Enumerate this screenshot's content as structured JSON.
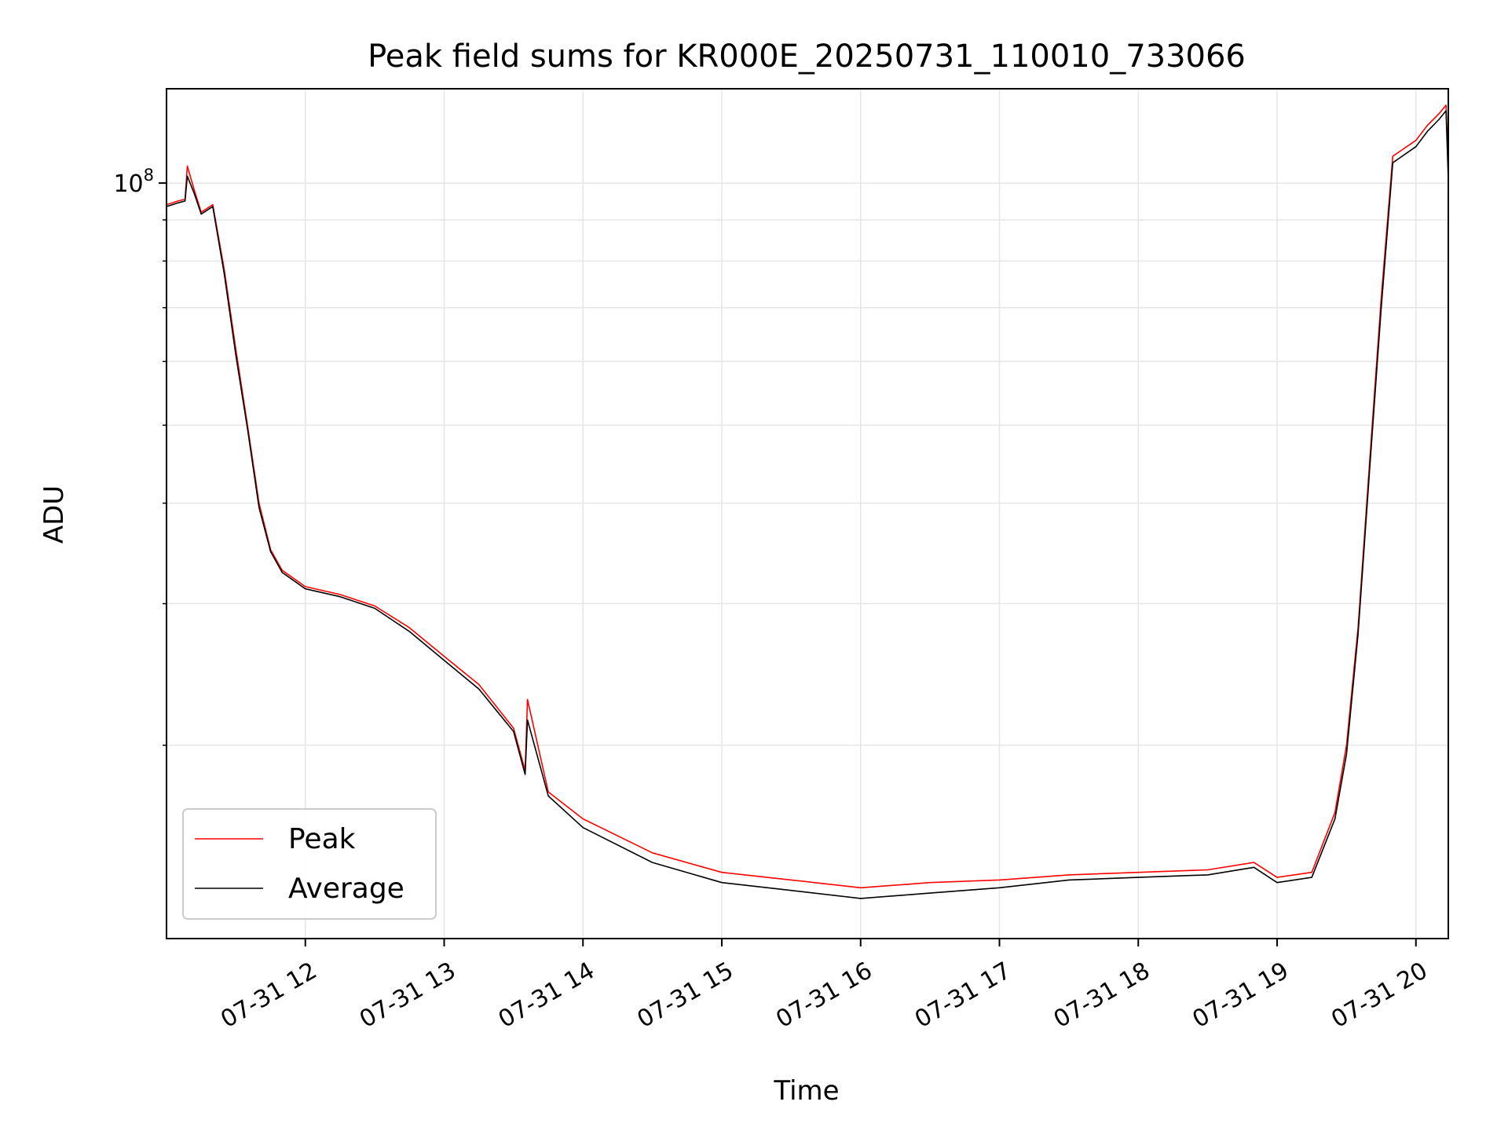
{
  "chart_data": {
    "type": "line",
    "title": "Peak field sums for KR000E_20250731_110010_733066",
    "xlabel": "Time",
    "ylabel": "ADU",
    "x_axis": "datetime",
    "x_range": [
      "2025-07-31 11:00",
      "2025-07-31 20:14"
    ],
    "y_scale": "log",
    "y_range": [
      11500000,
      131000000
    ],
    "xticks": [
      {
        "t": "2025-07-31 12:00",
        "label": "07-31 12"
      },
      {
        "t": "2025-07-31 13:00",
        "label": "07-31 13"
      },
      {
        "t": "2025-07-31 14:00",
        "label": "07-31 14"
      },
      {
        "t": "2025-07-31 15:00",
        "label": "07-31 15"
      },
      {
        "t": "2025-07-31 16:00",
        "label": "07-31 16"
      },
      {
        "t": "2025-07-31 17:00",
        "label": "07-31 17"
      },
      {
        "t": "2025-07-31 18:00",
        "label": "07-31 18"
      },
      {
        "t": "2025-07-31 19:00",
        "label": "07-31 19"
      },
      {
        "t": "2025-07-31 20:00",
        "label": "07-31 20"
      }
    ],
    "yticks_major": [
      {
        "v": 100000000,
        "base": "10",
        "exp": "8"
      }
    ],
    "yticks_minor": [
      20000000,
      30000000,
      40000000,
      50000000,
      60000000,
      70000000,
      80000000,
      90000000
    ],
    "grid": true,
    "legend_position": "lower-left",
    "series": [
      {
        "name": "Peak",
        "color": "#ff0000",
        "points": [
          [
            "2025-07-31 11:00",
            94000000
          ],
          [
            "2025-07-31 11:05",
            95000000
          ],
          [
            "2025-07-31 11:08",
            95500000
          ],
          [
            "2025-07-31 11:09",
            105000000
          ],
          [
            "2025-07-31 11:12",
            98000000
          ],
          [
            "2025-07-31 11:15",
            92000000
          ],
          [
            "2025-07-31 11:20",
            94000000
          ],
          [
            "2025-07-31 11:25",
            78000000
          ],
          [
            "2025-07-31 11:30",
            62000000
          ],
          [
            "2025-07-31 11:35",
            50000000
          ],
          [
            "2025-07-31 11:40",
            40000000
          ],
          [
            "2025-07-31 11:45",
            35000000
          ],
          [
            "2025-07-31 11:50",
            33000000
          ],
          [
            "2025-07-31 12:00",
            31500000
          ],
          [
            "2025-07-31 12:15",
            30800000
          ],
          [
            "2025-07-31 12:30",
            29800000
          ],
          [
            "2025-07-31 12:45",
            28000000
          ],
          [
            "2025-07-31 13:00",
            25800000
          ],
          [
            "2025-07-31 13:15",
            23800000
          ],
          [
            "2025-07-31 13:30",
            21000000
          ],
          [
            "2025-07-31 13:35",
            18600000
          ],
          [
            "2025-07-31 13:36",
            22800000
          ],
          [
            "2025-07-31 13:45",
            17500000
          ],
          [
            "2025-07-31 14:00",
            16200000
          ],
          [
            "2025-07-31 14:30",
            14700000
          ],
          [
            "2025-07-31 15:00",
            13900000
          ],
          [
            "2025-07-31 15:30",
            13600000
          ],
          [
            "2025-07-31 16:00",
            13300000
          ],
          [
            "2025-07-31 16:30",
            13500000
          ],
          [
            "2025-07-31 17:00",
            13600000
          ],
          [
            "2025-07-31 17:30",
            13800000
          ],
          [
            "2025-07-31 18:00",
            13900000
          ],
          [
            "2025-07-31 18:30",
            14000000
          ],
          [
            "2025-07-31 18:50",
            14300000
          ],
          [
            "2025-07-31 19:00",
            13700000
          ],
          [
            "2025-07-31 19:15",
            13900000
          ],
          [
            "2025-07-31 19:25",
            16500000
          ],
          [
            "2025-07-31 19:30",
            20000000
          ],
          [
            "2025-07-31 19:35",
            28000000
          ],
          [
            "2025-07-31 19:40",
            45000000
          ],
          [
            "2025-07-31 19:45",
            72000000
          ],
          [
            "2025-07-31 19:50",
            108000000
          ],
          [
            "2025-07-31 20:00",
            113000000
          ],
          [
            "2025-07-31 20:05",
            118000000
          ],
          [
            "2025-07-31 20:10",
            122000000
          ],
          [
            "2025-07-31 20:13",
            125000000
          ],
          [
            "2025-07-31 20:14",
            104000000
          ]
        ]
      },
      {
        "name": "Average",
        "color": "#000000",
        "points": [
          [
            "2025-07-31 11:00",
            93500000
          ],
          [
            "2025-07-31 11:05",
            94500000
          ],
          [
            "2025-07-31 11:08",
            95000000
          ],
          [
            "2025-07-31 11:09",
            102000000
          ],
          [
            "2025-07-31 11:12",
            97000000
          ],
          [
            "2025-07-31 11:15",
            91500000
          ],
          [
            "2025-07-31 11:20",
            93500000
          ],
          [
            "2025-07-31 11:25",
            77000000
          ],
          [
            "2025-07-31 11:30",
            61000000
          ],
          [
            "2025-07-31 11:35",
            49500000
          ],
          [
            "2025-07-31 11:40",
            39500000
          ],
          [
            "2025-07-31 11:45",
            34800000
          ],
          [
            "2025-07-31 11:50",
            32800000
          ],
          [
            "2025-07-31 12:00",
            31300000
          ],
          [
            "2025-07-31 12:15",
            30600000
          ],
          [
            "2025-07-31 12:30",
            29600000
          ],
          [
            "2025-07-31 12:45",
            27700000
          ],
          [
            "2025-07-31 13:00",
            25500000
          ],
          [
            "2025-07-31 13:15",
            23500000
          ],
          [
            "2025-07-31 13:30",
            20800000
          ],
          [
            "2025-07-31 13:35",
            18400000
          ],
          [
            "2025-07-31 13:36",
            21500000
          ],
          [
            "2025-07-31 13:45",
            17300000
          ],
          [
            "2025-07-31 14:00",
            15800000
          ],
          [
            "2025-07-31 14:30",
            14300000
          ],
          [
            "2025-07-31 15:00",
            13500000
          ],
          [
            "2025-07-31 15:30",
            13200000
          ],
          [
            "2025-07-31 16:00",
            12900000
          ],
          [
            "2025-07-31 16:30",
            13100000
          ],
          [
            "2025-07-31 17:00",
            13300000
          ],
          [
            "2025-07-31 17:30",
            13600000
          ],
          [
            "2025-07-31 18:00",
            13700000
          ],
          [
            "2025-07-31 18:30",
            13800000
          ],
          [
            "2025-07-31 18:50",
            14100000
          ],
          [
            "2025-07-31 19:00",
            13500000
          ],
          [
            "2025-07-31 19:15",
            13700000
          ],
          [
            "2025-07-31 19:25",
            16200000
          ],
          [
            "2025-07-31 19:30",
            19500000
          ],
          [
            "2025-07-31 19:35",
            27500000
          ],
          [
            "2025-07-31 19:40",
            44000000
          ],
          [
            "2025-07-31 19:45",
            70000000
          ],
          [
            "2025-07-31 19:50",
            106000000
          ],
          [
            "2025-07-31 20:00",
            111000000
          ],
          [
            "2025-07-31 20:05",
            116000000
          ],
          [
            "2025-07-31 20:10",
            120000000
          ],
          [
            "2025-07-31 20:13",
            123000000
          ],
          [
            "2025-07-31 20:14",
            101000000
          ]
        ]
      }
    ]
  }
}
